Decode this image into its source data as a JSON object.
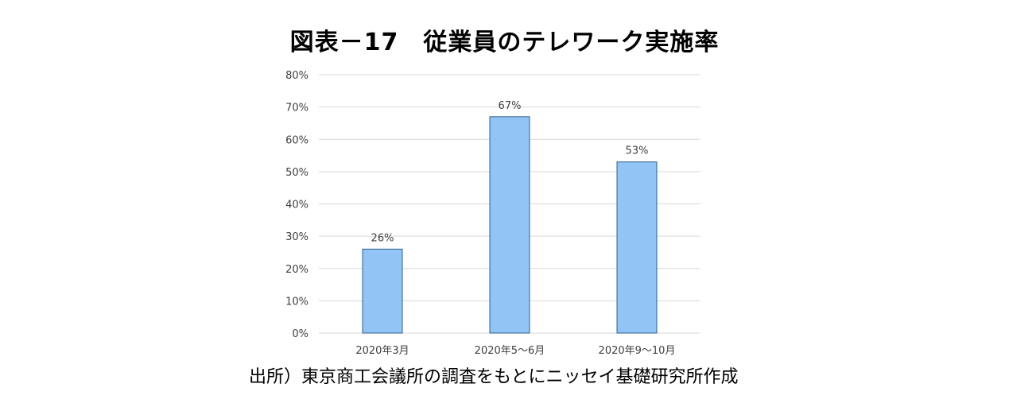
{
  "chart_data": {
    "type": "bar",
    "title": "図表－17　従業員のテレワーク実施率",
    "categories": [
      "2020年3月",
      "2020年5～6月",
      "2020年9～10月"
    ],
    "values": [
      26,
      67,
      53
    ],
    "data_labels": [
      "26%",
      "67%",
      "53%"
    ],
    "ylim": [
      0,
      80
    ],
    "yticks": [
      0,
      10,
      20,
      30,
      40,
      50,
      60,
      70,
      80
    ],
    "ytick_labels": [
      "0%",
      "10%",
      "20%",
      "30%",
      "40%",
      "50%",
      "60%",
      "70%",
      "80%"
    ],
    "y_unit": "%",
    "grid": true,
    "legend": "none",
    "bar_color": "#92c5f5",
    "bar_edge_color": "#2e5f8a"
  },
  "source": "出所）東京商工会議所の調査をもとにニッセイ基礎研究所作成"
}
